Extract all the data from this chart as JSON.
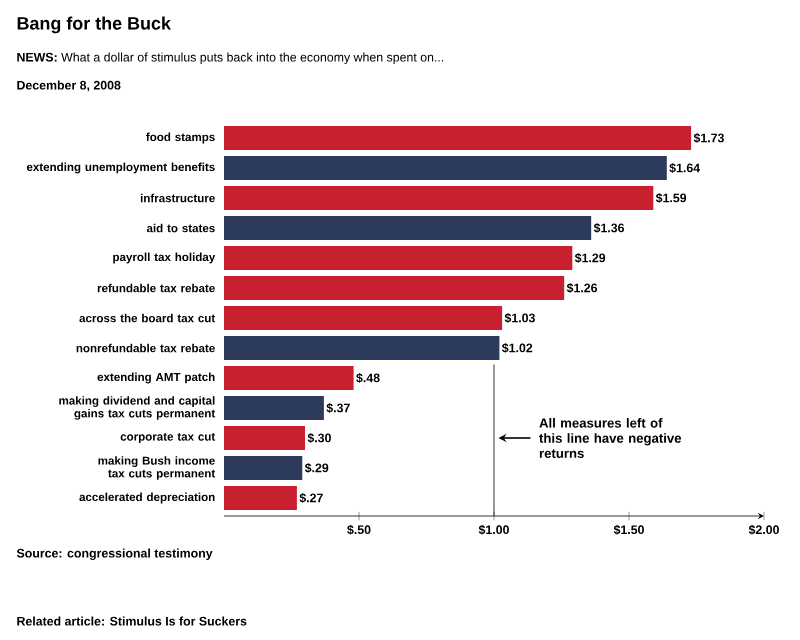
{
  "chart_data": {
    "type": "bar",
    "orientation": "horizontal",
    "title": "Bang for the Buck",
    "subtitle": "**NEWS:** What a dollar of stimulus puts back into the economy when spent on...",
    "categories": [
      "food stamps",
      "extending unemployment benefits",
      "infrastructure",
      "aid to states",
      "payroll tax holiday",
      "refundable tax rebate",
      "across the board tax cut",
      "nonrefundable tax rebate",
      "extending AMT patch",
      "making dividend and capital gains tax cuts permanent",
      "corporate tax cut",
      "making Bush income tax cuts permanent",
      "accelerated depreciation"
    ],
    "values": [
      1.73,
      1.64,
      1.59,
      1.36,
      1.29,
      1.26,
      1.03,
      1.02,
      0.48,
      0.37,
      0.3,
      0.29,
      0.27
    ],
    "value_labels": [
      "$1.73",
      "$1.64",
      "$1.59",
      "$1.36",
      "$1.29",
      "$1.26",
      "$1.03",
      "$1.02",
      "$.48",
      "$.37",
      "$.30",
      "$.29",
      "$.27"
    ],
    "colors": [
      "#c8202f",
      "#2c3a5c",
      "#c8202f",
      "#2c3a5c",
      "#c8202f",
      "#c8202f",
      "#c8202f",
      "#2c3a5c",
      "#c8202f",
      "#2c3a5c",
      "#c8202f",
      "#2c3a5c",
      "#c8202f"
    ],
    "xlim": [
      0,
      2
    ],
    "xticks": [
      {
        "value": 0.5,
        "label": "$.50"
      },
      {
        "value": 1,
        "label": "$1.00"
      },
      {
        "value": 1.5,
        "label": "$1.50"
      },
      {
        "value": 2,
        "label": "$2.00"
      }
    ],
    "ref_lines": [
      {
        "axis": "x",
        "value": 1,
        "label": "All measures left of this line have negative returns",
        "color": "#000000"
      }
    ],
    "annotations": [
      "December 8, 2008",
      "Source: congressional testimony",
      "Related article: **Stimulus Is for Suckers**"
    ],
    "grid": false
  }
}
